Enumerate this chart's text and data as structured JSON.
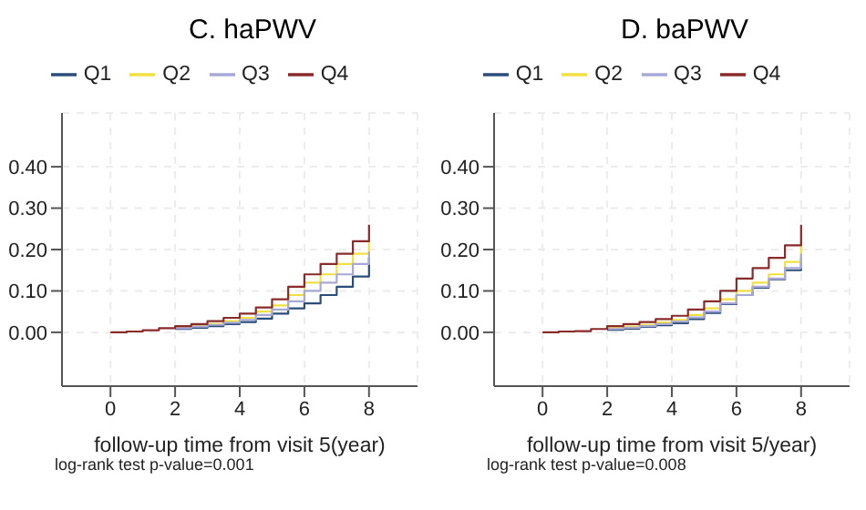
{
  "chart_data": [
    {
      "type": "step",
      "title": "C. haPWV",
      "xlabel": "follow-up time from visit 5(year)",
      "annotations": [
        "log-rank test p-value=0.001"
      ],
      "x": [
        0,
        0.5,
        1,
        1.5,
        2,
        2.5,
        3,
        3.5,
        4,
        4.5,
        5,
        5.5,
        6,
        6.5,
        7,
        7.5,
        8
      ],
      "xlim": [
        -1.5,
        9.5
      ],
      "xticks": [
        0,
        2,
        4,
        6,
        8
      ],
      "ylim": [
        -0.13,
        0.53
      ],
      "yticks": [
        {
          "value": 0,
          "label": "0.00"
        },
        {
          "value": 0.1,
          "label": "0.10"
        },
        {
          "value": 0.2,
          "label": "0.20"
        },
        {
          "value": 0.3,
          "label": "0.30"
        },
        {
          "value": 0.4,
          "label": "0.40"
        }
      ],
      "grid": true,
      "legend": "top",
      "series": [
        {
          "name": "Q1",
          "color": "#2a4d7a",
          "values": [
            null,
            null,
            null,
            null,
            0.008,
            0.011,
            0.015,
            0.02,
            0.025,
            0.033,
            0.045,
            0.058,
            0.07,
            0.09,
            0.11,
            0.135,
            0.18
          ]
        },
        {
          "name": "Q2",
          "color": "#f0e040",
          "values": [
            null,
            null,
            null,
            null,
            0.012,
            0.016,
            0.02,
            0.027,
            0.035,
            0.05,
            0.065,
            0.09,
            0.12,
            0.14,
            0.165,
            0.19,
            0.22
          ]
        },
        {
          "name": "Q3",
          "color": "#a8a8d8",
          "values": [
            null,
            null,
            null,
            null,
            0.01,
            0.014,
            0.018,
            0.023,
            0.03,
            0.042,
            0.055,
            0.075,
            0.1,
            0.12,
            0.14,
            0.165,
            0.195
          ]
        },
        {
          "name": "Q4",
          "color": "#8b2a2a",
          "values": [
            0,
            0.002,
            0.005,
            0.01,
            0.015,
            0.02,
            0.027,
            0.035,
            0.045,
            0.06,
            0.08,
            0.11,
            0.14,
            0.165,
            0.19,
            0.22,
            0.26
          ]
        }
      ]
    },
    {
      "type": "step",
      "title": "D. baPWV",
      "xlabel": "follow-up time from visit 5/year)",
      "annotations": [
        "log-rank test p-value=0.008"
      ],
      "x": [
        0,
        0.5,
        1,
        1.5,
        2,
        2.5,
        3,
        3.5,
        4,
        4.5,
        5,
        5.5,
        6,
        6.5,
        7,
        7.5,
        8
      ],
      "xlim": [
        -1.5,
        9.5
      ],
      "xticks": [
        0,
        2,
        4,
        6,
        8
      ],
      "ylim": [
        -0.13,
        0.53
      ],
      "yticks": [
        {
          "value": 0,
          "label": "0.00"
        },
        {
          "value": 0.1,
          "label": "0.10"
        },
        {
          "value": 0.2,
          "label": "0.20"
        },
        {
          "value": 0.3,
          "label": "0.30"
        },
        {
          "value": 0.4,
          "label": "0.40"
        }
      ],
      "grid": true,
      "legend": "top",
      "series": [
        {
          "name": "Q1",
          "color": "#2a4d7a",
          "values": [
            null,
            null,
            null,
            null,
            0.006,
            0.009,
            0.013,
            0.017,
            0.022,
            0.032,
            0.047,
            0.068,
            0.09,
            0.108,
            0.128,
            0.15,
            0.18
          ]
        },
        {
          "name": "Q2",
          "color": "#f0e040",
          "values": [
            null,
            null,
            null,
            null,
            0.01,
            0.014,
            0.018,
            0.024,
            0.03,
            0.042,
            0.058,
            0.08,
            0.1,
            0.12,
            0.14,
            0.17,
            0.225
          ]
        },
        {
          "name": "Q3",
          "color": "#a8a8d8",
          "values": [
            null,
            null,
            null,
            null,
            0.008,
            0.011,
            0.015,
            0.02,
            0.026,
            0.036,
            0.05,
            0.07,
            0.09,
            0.11,
            0.13,
            0.155,
            0.19
          ]
        },
        {
          "name": "Q4",
          "color": "#8b2a2a",
          "values": [
            0,
            0.002,
            0.003,
            0.008,
            0.015,
            0.02,
            0.025,
            0.032,
            0.04,
            0.055,
            0.075,
            0.1,
            0.13,
            0.155,
            0.18,
            0.21,
            0.26
          ]
        }
      ]
    }
  ]
}
